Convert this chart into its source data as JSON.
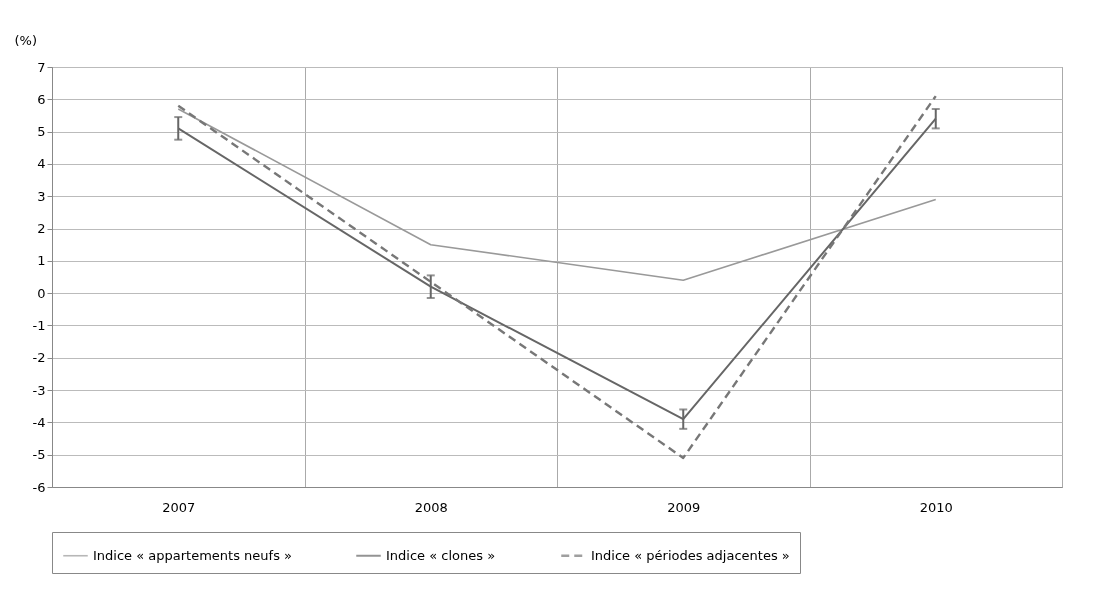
{
  "chart_data": {
    "type": "line",
    "ylabel": "(%)",
    "categories": [
      "2007",
      "2008",
      "2009",
      "2010"
    ],
    "series": [
      {
        "name": "Indice « appartements neufs »",
        "color": "#999999",
        "line_style": "solid",
        "values": [
          5.7,
          1.5,
          0.4,
          2.9
        ]
      },
      {
        "name": "Indice « clones »",
        "color": "#666666",
        "line_style": "solid",
        "values": [
          5.1,
          0.2,
          -3.9,
          5.4
        ],
        "errors": [
          0.35,
          0.35,
          0.3,
          0.3
        ]
      },
      {
        "name": "Indice « périodes adjacentes »",
        "color": "#777777",
        "line_style": "dashed",
        "values": [
          5.8,
          0.35,
          -5.1,
          6.1
        ]
      }
    ],
    "ylim": [
      -6,
      7
    ],
    "yticks": [
      -6,
      -5,
      -4,
      -3,
      -2,
      -1,
      0,
      1,
      2,
      3,
      4,
      5,
      6,
      7
    ],
    "grid": true,
    "legend": "bottom",
    "marker": "none"
  }
}
